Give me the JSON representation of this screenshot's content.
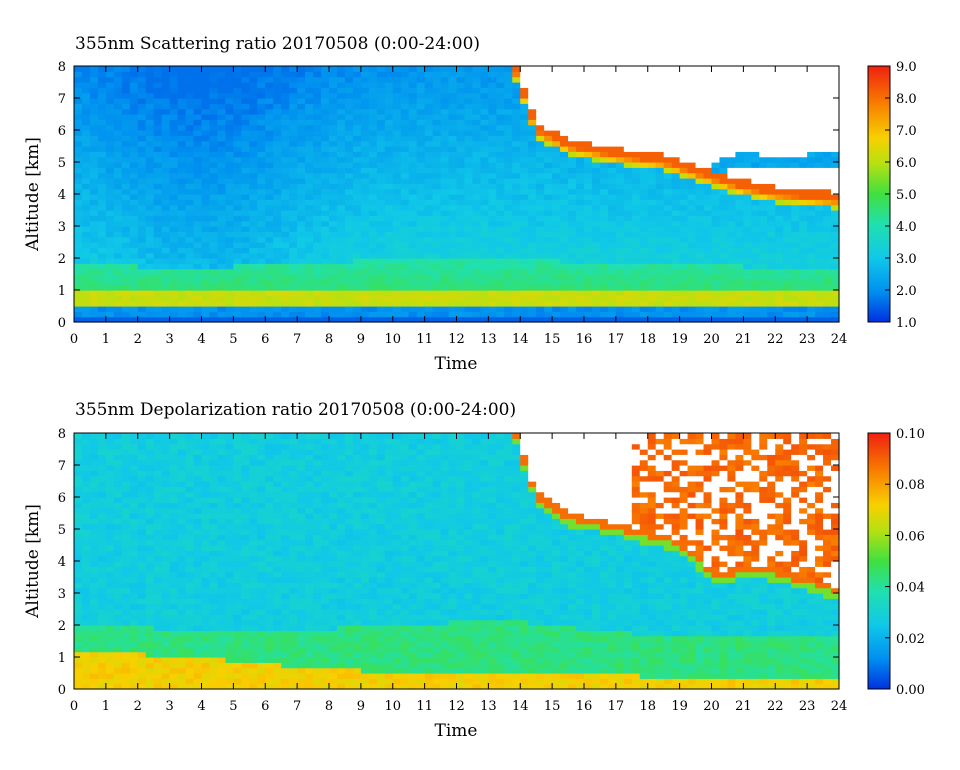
{
  "chart_data": [
    {
      "type": "heatmap",
      "title": "355nm Scattering ratio  20170508 (0:00-24:00)",
      "xlabel": "Time",
      "ylabel": "Altitude [km]",
      "xlim": [
        0,
        24
      ],
      "ylim": [
        0,
        8
      ],
      "x_ticks": [
        0,
        1,
        2,
        3,
        4,
        5,
        6,
        7,
        8,
        9,
        10,
        11,
        12,
        13,
        14,
        15,
        16,
        17,
        18,
        19,
        20,
        21,
        22,
        23,
        24
      ],
      "y_ticks": [
        0,
        1,
        2,
        3,
        4,
        5,
        6,
        7,
        8
      ],
      "colorbar": {
        "min": 1.0,
        "max": 9.0,
        "ticks": [
          "1.0",
          "2.0",
          "3.0",
          "4.0",
          "5.0",
          "6.0",
          "7.0",
          "8.0",
          "9.0"
        ]
      },
      "field": {
        "surface_layer_km": [
          0.25,
          0.45
        ],
        "boundary_layer_top_km": [
          [
            0,
            1.8
          ],
          [
            4,
            1.7
          ],
          [
            8,
            1.9
          ],
          [
            12,
            2.0
          ],
          [
            16,
            1.9
          ],
          [
            20,
            1.8
          ],
          [
            24,
            1.6
          ]
        ],
        "aerosol_layer_km": [
          [
            0,
            0.6,
            1.0
          ],
          [
            5,
            0.6,
            0.8
          ],
          [
            10,
            0.6,
            0.9
          ],
          [
            14,
            0.6,
            1.4
          ],
          [
            24,
            0.6,
            1.2
          ]
        ],
        "background_minimum_at_hour": 4,
        "cloud_base_km": [
          [
            13.8,
            8.0
          ],
          [
            14.5,
            6.0
          ],
          [
            15.5,
            5.5
          ],
          [
            17,
            5.2
          ],
          [
            18.5,
            5.0
          ],
          [
            20,
            4.5
          ],
          [
            21,
            4.2
          ],
          [
            22,
            4.0
          ],
          [
            24,
            3.8
          ]
        ],
        "cloud_top_km": [
          [
            20,
            4.6
          ],
          [
            21,
            4.9
          ],
          [
            22,
            4.8
          ],
          [
            24,
            4.9
          ]
        ]
      }
    },
    {
      "type": "heatmap",
      "title": "355nm Depolarization ratio  20170508 (0:00-24:00)",
      "xlabel": "Time",
      "ylabel": "Altitude [km]",
      "xlim": [
        0,
        24
      ],
      "ylim": [
        0,
        8
      ],
      "x_ticks": [
        0,
        1,
        2,
        3,
        4,
        5,
        6,
        7,
        8,
        9,
        10,
        11,
        12,
        13,
        14,
        15,
        16,
        17,
        18,
        19,
        20,
        21,
        22,
        23,
        24
      ],
      "y_ticks": [
        0,
        1,
        2,
        3,
        4,
        5,
        6,
        7,
        8
      ],
      "colorbar": {
        "min": 0.0,
        "max": 0.1,
        "ticks": [
          "0.00",
          "0.02",
          "0.04",
          "0.06",
          "0.08",
          "0.10"
        ]
      },
      "field": {
        "boundary_layer_top_km": [
          [
            0,
            2.0
          ],
          [
            6,
            1.8
          ],
          [
            12,
            2.1
          ],
          [
            14,
            2.1
          ],
          [
            18,
            1.7
          ],
          [
            24,
            1.7
          ]
        ],
        "dust_layer_km": [
          [
            0,
            0.1,
            1.2
          ],
          [
            4,
            0.1,
            1.0
          ],
          [
            8,
            0.1,
            0.6
          ],
          [
            24,
            0.1,
            0.3
          ]
        ],
        "cloud_base_km": [
          [
            13.8,
            8.0
          ],
          [
            14.5,
            6.0
          ],
          [
            15.5,
            5.3
          ],
          [
            17,
            5.0
          ],
          [
            19,
            4.5
          ],
          [
            20.2,
            3.4
          ],
          [
            21,
            3.7
          ],
          [
            22,
            3.6
          ],
          [
            24,
            3.0
          ]
        ]
      }
    }
  ]
}
